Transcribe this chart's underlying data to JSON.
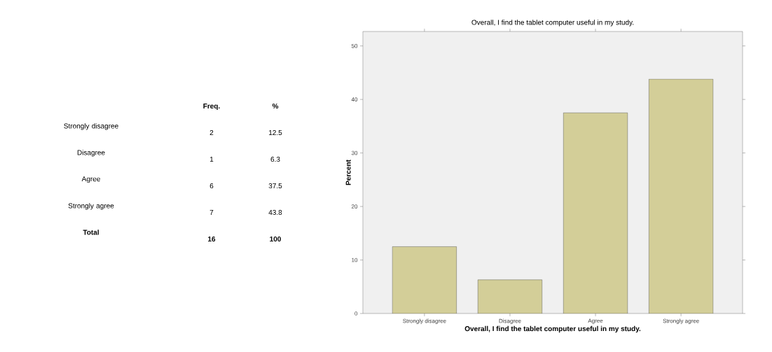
{
  "chart_data": [
    {
      "type": "other",
      "annotations": [
        "Freq.",
        "%",
        "Strongly disagree",
        "2",
        "12.5",
        "Disagree",
        "1",
        "6.3",
        "Agree",
        "6",
        "37.5",
        "Strongly agree",
        "7",
        "43.8",
        "Total",
        "16",
        "100"
      ]
    },
    {
      "type": "bar",
      "title": "Overall, I find the tablet computer useful in my study.",
      "xlabel": "Overall, I find the tablet computer useful in my study.",
      "ylabel": "Percent",
      "categories": [
        "Strongly disagree",
        "Disagree",
        "Agree",
        "Strongly agree"
      ],
      "values": [
        12.5,
        6.3,
        37.5,
        43.8
      ],
      "color": "#d3ce98",
      "ylim": [
        0,
        52.7
      ],
      "yticks": [
        0,
        10,
        20,
        30,
        40,
        50
      ]
    }
  ]
}
